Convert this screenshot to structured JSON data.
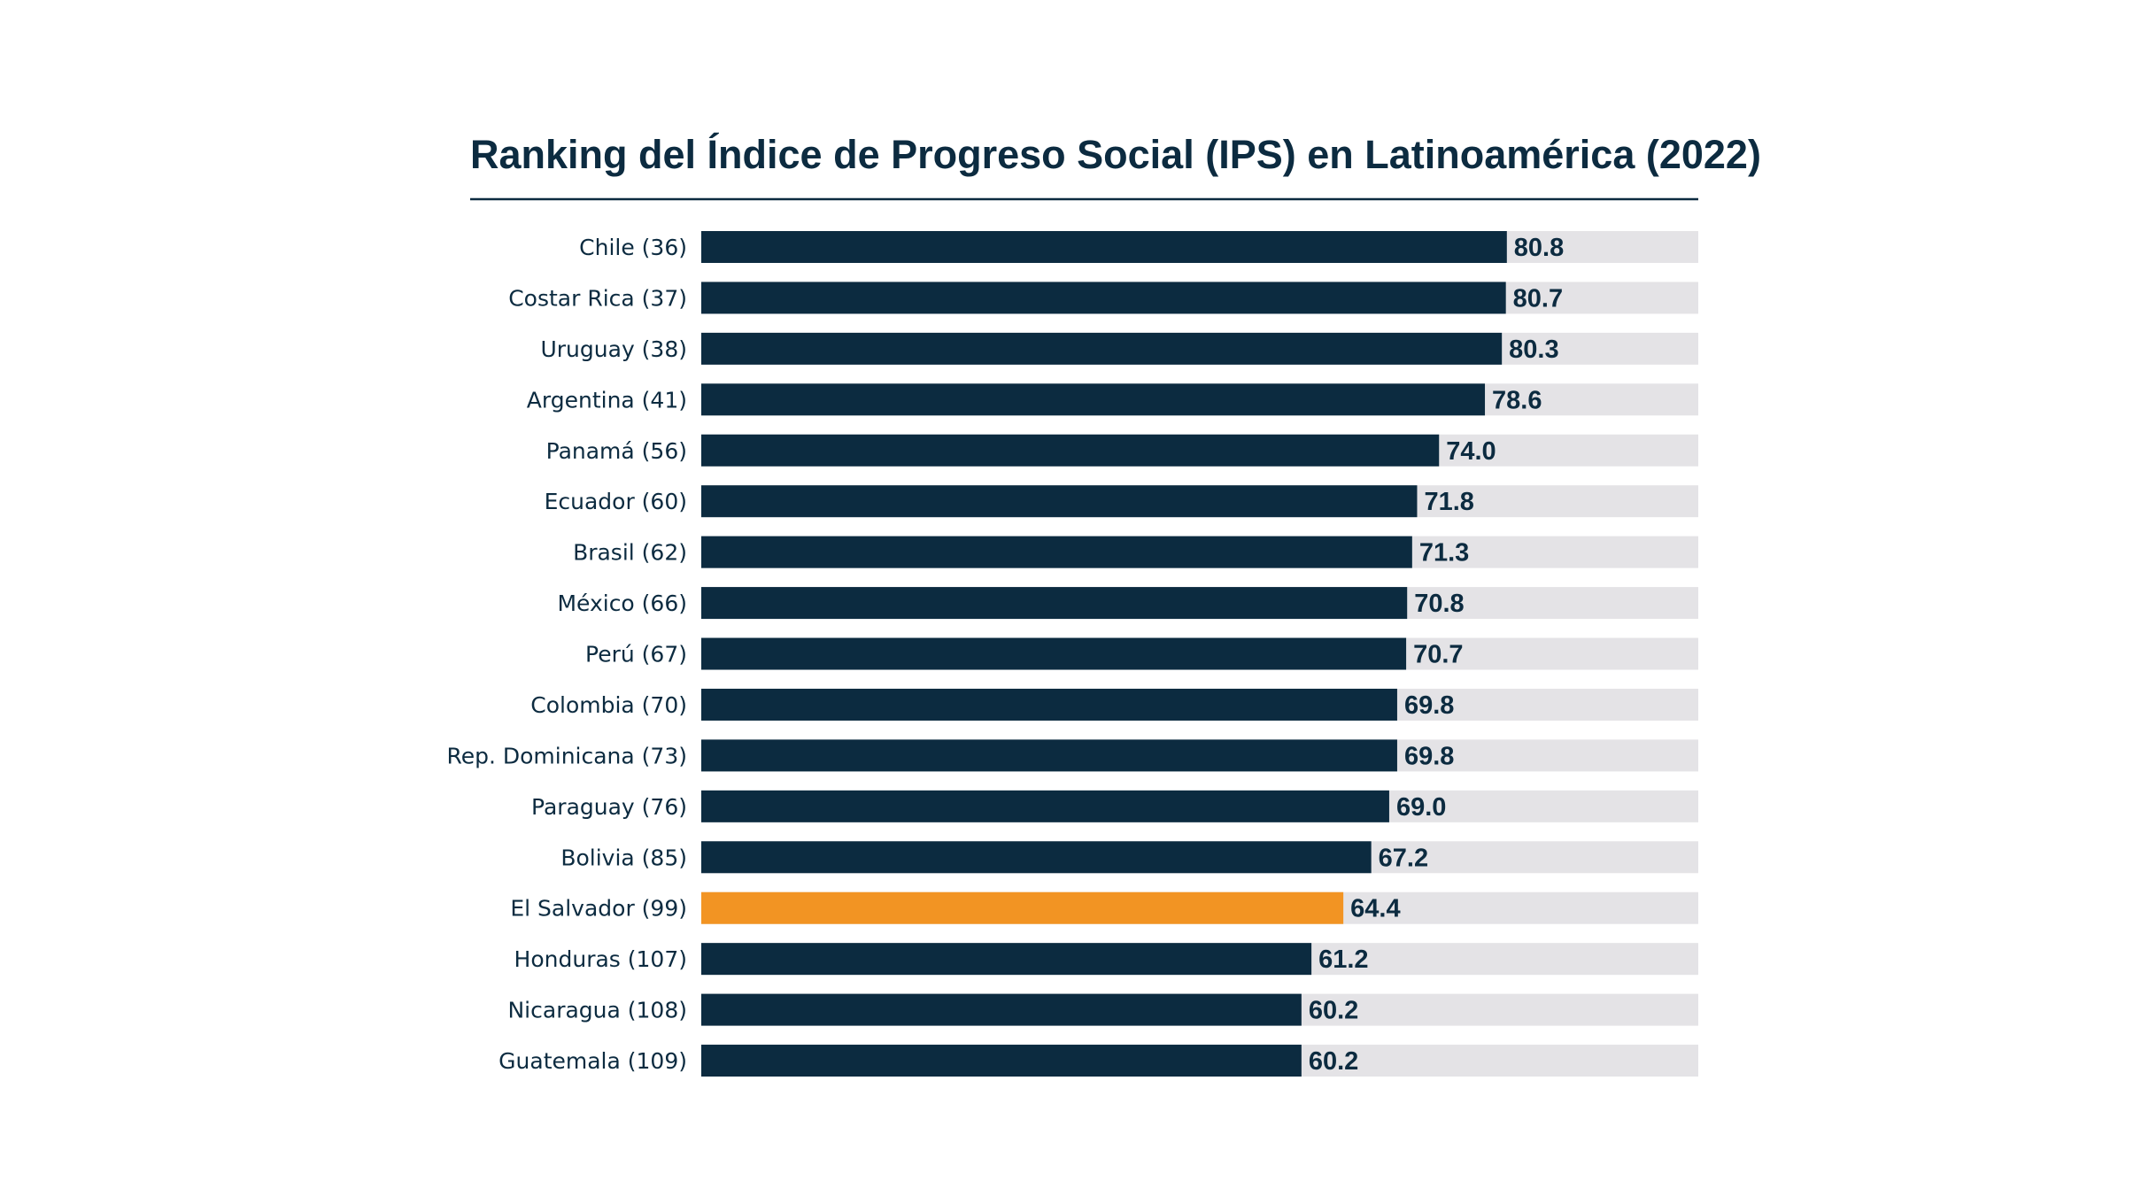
{
  "chart_data": {
    "type": "bar",
    "orientation": "horizontal",
    "title": "Ranking del Índice de Progreso Social (IPS) en Latinoamérica (2022)",
    "categories": [
      "Chile (36)",
      "Costar Rica (37)",
      "Uruguay (38)",
      "Argentina (41)",
      "Panamá (56)",
      "Ecuador (60)",
      "Brasil (62)",
      "México (66)",
      "Perú (67)",
      "Colombia (70)",
      "Rep. Dominicana (73)",
      "Paraguay (76)",
      "Bolivia (85)",
      "El Salvador (99)",
      "Honduras (107)",
      "Nicaragua (108)",
      "Guatemala (109)"
    ],
    "values": [
      80.8,
      80.7,
      80.3,
      78.6,
      74.0,
      71.8,
      71.3,
      70.8,
      70.7,
      69.8,
      69.8,
      69.0,
      67.2,
      64.4,
      61.2,
      60.2,
      60.2
    ],
    "value_labels": [
      "80.8",
      "80.7",
      "80.3",
      "78.6",
      "74.0",
      "71.8",
      "71.3",
      "70.8",
      "70.7",
      "69.8",
      "69.8",
      "69.0",
      "67.2",
      "64.4",
      "61.2",
      "60.2",
      "60.2"
    ],
    "xlim": [
      0,
      100
    ],
    "highlight_category": "El Salvador (99)",
    "grid": false,
    "legend": "none"
  },
  "colors": {
    "bar": "#0c2b40",
    "highlight": "#f29423",
    "track": "#e4e3e6",
    "text": "#0c2b40",
    "rule": "#0c2b40"
  }
}
